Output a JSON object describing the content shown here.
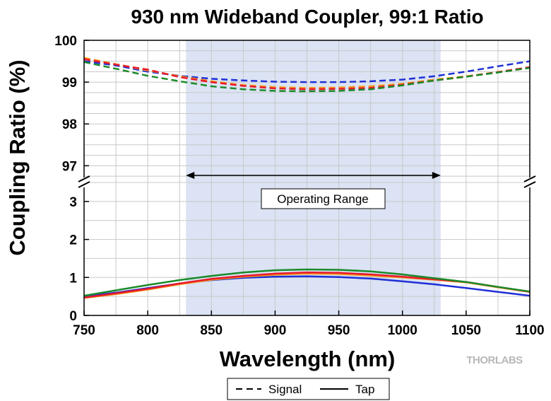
{
  "chart_data": {
    "type": "line",
    "title": "930 nm Wideband Coupler, 99:1 Ratio",
    "xlabel": "Wavelength (nm)",
    "ylabel": "Coupling Ratio (%)",
    "xlim": [
      750,
      1100
    ],
    "x_ticks": [
      "750",
      "800",
      "850",
      "900",
      "950",
      "1000",
      "1050",
      "1100"
    ],
    "y_axis_broken": true,
    "ylim_lower": [
      0,
      3.5
    ],
    "ylim_upper": [
      96.6,
      100
    ],
    "y_ticks_lower": [
      "0",
      "1",
      "2",
      "3"
    ],
    "y_ticks_upper": [
      "97",
      "98",
      "99",
      "100"
    ],
    "grid": true,
    "shaded_region": {
      "x": [
        830,
        1030
      ],
      "label": "Operating Range",
      "color": "#dbe3f4"
    },
    "legend": {
      "placement": "bottom-center",
      "entries": [
        {
          "label": "Signal",
          "style": "dashed"
        },
        {
          "label": "Tap",
          "style": "solid"
        }
      ]
    },
    "x": [
      750,
      775,
      800,
      825,
      850,
      875,
      900,
      925,
      950,
      975,
      1000,
      1025,
      1050,
      1075,
      1100
    ],
    "series": [
      {
        "style": "dashed",
        "color": "#1f2fd6",
        "values": [
          99.5,
          99.4,
          99.25,
          99.15,
          99.08,
          99.04,
          99.01,
          99.0,
          99.0,
          99.02,
          99.06,
          99.14,
          99.25,
          99.38,
          99.5
        ]
      },
      {
        "style": "dashed",
        "color": "#e8192b",
        "values": [
          99.55,
          99.42,
          99.3,
          99.12,
          99.0,
          98.91,
          98.85,
          98.83,
          98.84,
          98.86,
          98.94,
          99.04,
          99.13,
          99.24,
          99.36
        ]
      },
      {
        "style": "dashed",
        "color": "#f39a1e",
        "values": [
          99.58,
          99.43,
          99.28,
          99.14,
          99.02,
          98.93,
          98.88,
          98.86,
          98.87,
          98.9,
          98.96,
          99.06,
          99.14,
          99.24,
          99.35
        ]
      },
      {
        "style": "dashed",
        "color": "#1a8a2a",
        "values": [
          99.48,
          99.32,
          99.15,
          99.02,
          98.9,
          98.83,
          98.79,
          98.78,
          98.79,
          98.83,
          98.92,
          99.04,
          99.13,
          99.23,
          99.34
        ]
      },
      {
        "style": "solid",
        "color": "#1f2fd6",
        "values": [
          0.5,
          0.6,
          0.72,
          0.84,
          0.93,
          0.99,
          1.02,
          1.03,
          1.01,
          0.97,
          0.9,
          0.82,
          0.72,
          0.62,
          0.52
        ]
      },
      {
        "style": "solid",
        "color": "#e8192b",
        "values": [
          0.47,
          0.58,
          0.7,
          0.84,
          0.96,
          1.04,
          1.1,
          1.13,
          1.12,
          1.08,
          1.02,
          0.95,
          0.88,
          0.75,
          0.62
        ]
      },
      {
        "style": "solid",
        "color": "#f39a1e",
        "values": [
          0.46,
          0.56,
          0.68,
          0.82,
          0.94,
          1.02,
          1.07,
          1.1,
          1.09,
          1.05,
          1.0,
          0.94,
          0.87,
          0.74,
          0.62
        ]
      },
      {
        "style": "solid",
        "color": "#1a8a2a",
        "values": [
          0.52,
          0.66,
          0.8,
          0.93,
          1.04,
          1.13,
          1.19,
          1.21,
          1.2,
          1.16,
          1.08,
          0.98,
          0.88,
          0.75,
          0.63
        ]
      }
    ]
  },
  "branding": {
    "logo": "THORLABS"
  }
}
